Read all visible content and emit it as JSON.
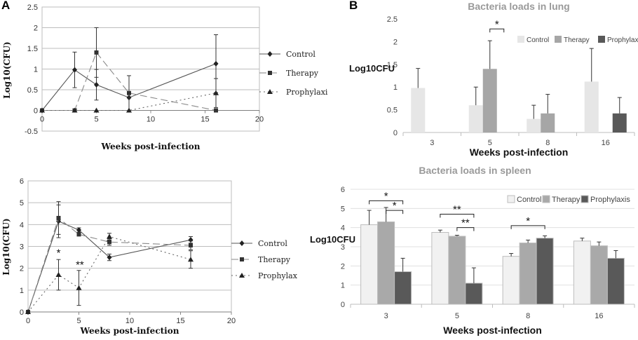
{
  "panels": {
    "a": "A",
    "b": "B"
  },
  "chart_data": [
    {
      "id": "a_lung",
      "type": "line",
      "title": "",
      "xlabel": "Weeks  post-infection",
      "ylabel": "Log10(CFU)",
      "xlim": [
        0,
        20
      ],
      "ylim": [
        -0.5,
        2.5
      ],
      "xticks": [
        0,
        5,
        10,
        15,
        20
      ],
      "yticks": [
        -0.5,
        0,
        0.5,
        1,
        1.5,
        2,
        2.5
      ],
      "series": [
        {
          "name": "Control",
          "marker": "diamond",
          "dash": "",
          "color": "#555555",
          "x": [
            0,
            3,
            5,
            8,
            16
          ],
          "y": [
            0,
            0.98,
            0.62,
            0.31,
            1.13
          ],
          "err": [
            0,
            0.43,
            0.37,
            0,
            0.7
          ]
        },
        {
          "name": "Therapy",
          "marker": "square",
          "dash": "10 5",
          "color": "#8a8a8a",
          "x": [
            0,
            3,
            5,
            8,
            16
          ],
          "y": [
            0,
            0,
            1.4,
            0.42,
            0
          ],
          "err": [
            0,
            0,
            0.6,
            0.42,
            0
          ]
        },
        {
          "name": "Prophylaxi",
          "marker": "triangle",
          "dash": "2 4",
          "color": "#666666",
          "x": [
            0,
            3,
            5,
            8,
            16
          ],
          "y": [
            0,
            0,
            0,
            0,
            0.42
          ],
          "err": [
            0,
            0,
            0,
            0,
            0.35
          ]
        }
      ],
      "annotations": []
    },
    {
      "id": "a_spleen",
      "type": "line",
      "title": "",
      "xlabel": "Weeks  post-infection",
      "ylabel": "Log10(CFU)",
      "xlim": [
        0,
        20
      ],
      "ylim": [
        0,
        6
      ],
      "xticks": [
        0,
        5,
        10,
        15,
        20
      ],
      "yticks": [
        0,
        1,
        2,
        3,
        4,
        5,
        6
      ],
      "series": [
        {
          "name": "Control",
          "marker": "diamond",
          "dash": "",
          "color": "#555555",
          "x": [
            0,
            3,
            5,
            8,
            16
          ],
          "y": [
            0,
            4.15,
            3.75,
            2.5,
            3.3
          ],
          "err": [
            0,
            0.75,
            0.1,
            0.15,
            0.15
          ]
        },
        {
          "name": "Therapy",
          "marker": "square",
          "dash": "10 5",
          "color": "#8a8a8a",
          "x": [
            0,
            3,
            5,
            8,
            16
          ],
          "y": [
            0,
            4.3,
            3.55,
            3.2,
            3.05
          ],
          "err": [
            0,
            0.75,
            0.05,
            0.15,
            0.2
          ]
        },
        {
          "name": "Prophylax",
          "marker": "triangle",
          "dash": "2 4",
          "color": "#666666",
          "x": [
            0,
            3,
            5,
            8,
            16
          ],
          "y": [
            0,
            1.7,
            1.1,
            3.45,
            2.4
          ],
          "err": [
            0,
            0.7,
            0.8,
            0.15,
            0.4
          ]
        }
      ],
      "annotations": [
        {
          "text": "*",
          "x": 3,
          "y": 2.55
        },
        {
          "text": "**",
          "x": 5.1,
          "y": 2.0
        }
      ]
    },
    {
      "id": "b_lung",
      "type": "bar",
      "title": "Bacteria loads in lung",
      "xlabel": "Weeks post-infection",
      "ylabel": "Log10CFU",
      "ylim": [
        0,
        2.5
      ],
      "yticks": [
        0,
        0.5,
        1,
        1.5,
        2,
        2.5
      ],
      "categories": [
        "3",
        "5",
        "8",
        "16"
      ],
      "series": [
        {
          "name": "Control",
          "color": "#e6e6e6",
          "values": [
            0.98,
            0.6,
            0.3,
            1.12
          ],
          "err": [
            0.43,
            0.4,
            0.3,
            0.73
          ]
        },
        {
          "name": "Therapy",
          "color": "#a6a6a6",
          "values": [
            0,
            1.4,
            0.42,
            0
          ],
          "err": [
            0,
            0.62,
            0.42,
            0
          ]
        },
        {
          "name": "Prophylaxis",
          "color": "#595959",
          "values": [
            0,
            0,
            0,
            0.42
          ],
          "err": [
            0,
            0,
            0,
            0.35
          ]
        }
      ],
      "significance": [
        {
          "text": "*",
          "from": [
            1,
            1
          ],
          "to": [
            1,
            2
          ],
          "y": 2.28
        }
      ],
      "legend": "top-right"
    },
    {
      "id": "b_spleen",
      "type": "bar",
      "title": "Bacteria loads in spleen",
      "xlabel": "Weeks post-infection",
      "ylabel": "Log10CFU",
      "ylim": [
        0,
        6
      ],
      "yticks": [
        0,
        1,
        2,
        3,
        4,
        5,
        6
      ],
      "categories": [
        "3",
        "5",
        "8",
        "16"
      ],
      "series": [
        {
          "name": "Control",
          "color": "#f1f1f1",
          "values": [
            4.15,
            3.75,
            2.5,
            3.3
          ],
          "err": [
            0.75,
            0.12,
            0.15,
            0.15
          ]
        },
        {
          "name": "Therapy",
          "color": "#a9a9a9",
          "values": [
            4.3,
            3.55,
            3.2,
            3.05
          ],
          "err": [
            0.75,
            0.05,
            0.15,
            0.2
          ]
        },
        {
          "name": "Prophylaxis",
          "color": "#595959",
          "values": [
            1.7,
            1.1,
            3.45,
            2.4
          ],
          "err": [
            0.7,
            0.8,
            0.12,
            0.4
          ]
        }
      ],
      "significance": [
        {
          "text": "*",
          "from": [
            0,
            0
          ],
          "to": [
            0,
            2
          ],
          "y": 5.4
        },
        {
          "text": "*",
          "from": [
            0,
            1
          ],
          "to": [
            0,
            2
          ],
          "y": 4.9
        },
        {
          "text": "**",
          "from": [
            1,
            0
          ],
          "to": [
            1,
            2
          ],
          "y": 4.7
        },
        {
          "text": "**",
          "from": [
            1,
            1
          ],
          "to": [
            1,
            2
          ],
          "y": 4.0
        },
        {
          "text": "*",
          "from": [
            2,
            0
          ],
          "to": [
            2,
            2
          ],
          "y": 4.1
        }
      ],
      "legend": "top-right"
    }
  ]
}
